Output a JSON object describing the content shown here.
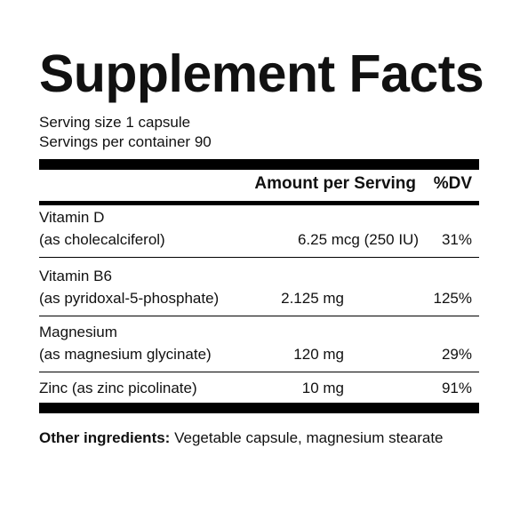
{
  "title": "Supplement Facts",
  "serving_size": "Serving size 1 capsule",
  "servings_per_container": "Servings per container 90",
  "header": {
    "amount": "Amount per Serving",
    "dv": "%DV"
  },
  "rows": [
    {
      "name": "Vitamin D",
      "form": "(as cholecalciferol)",
      "amount": "6.25 mcg (250 IU)",
      "dv": "31%"
    },
    {
      "name": "Vitamin B6",
      "form": "(as pyridoxal-5-phosphate)",
      "amount": "2.125 mg",
      "dv": "125%"
    },
    {
      "name": "Magnesium",
      "form": "(as magnesium glycinate)",
      "amount": "120 mg",
      "dv": "29%"
    },
    {
      "name": "Zinc (as zinc picolinate)",
      "amount": "10 mg",
      "dv": "91%"
    }
  ],
  "other_ingredients": {
    "label": "Other ingredients:",
    "text": "Vegetable capsule, magnesium stearate"
  }
}
